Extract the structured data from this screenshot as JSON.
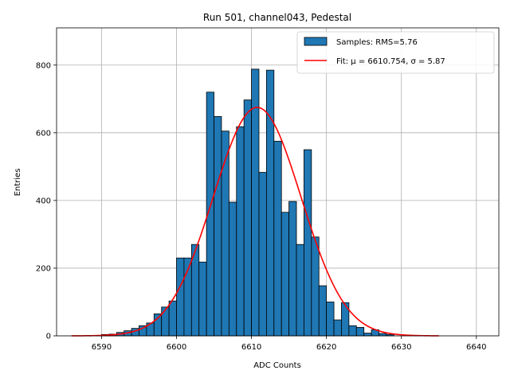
{
  "chart_data": {
    "type": "bar",
    "title": "Run 501, channel043, Pedestal",
    "xlabel": "ADC Counts",
    "ylabel": "Entries",
    "xlim": [
      6584,
      6643
    ],
    "ylim": [
      0,
      910
    ],
    "xticks": [
      6590,
      6600,
      6610,
      6620,
      6630,
      6640
    ],
    "yticks": [
      0,
      200,
      400,
      600,
      800
    ],
    "grid": true,
    "legend_position": "top-right",
    "histogram": {
      "name": "Samples: RMS=5.76",
      "color": "#1f77b4",
      "bin_start": 6589,
      "bin_width": 1,
      "counts": [
        1,
        4,
        5,
        10,
        15,
        22,
        30,
        38,
        65,
        85,
        103,
        230,
        230,
        270,
        218,
        720,
        648,
        605,
        395,
        618,
        697,
        788,
        483,
        785,
        575,
        365,
        397,
        270,
        550,
        292,
        148,
        100,
        47,
        98,
        30,
        25,
        8,
        18,
        7,
        4
      ]
    },
    "fit": {
      "name": "Fit: μ = 6610.754, σ = 5.87",
      "color": "#ff0000",
      "mu": 6610.754,
      "sigma": 5.87,
      "amplitude": 675,
      "x_range": [
        6586,
        6635
      ]
    }
  }
}
